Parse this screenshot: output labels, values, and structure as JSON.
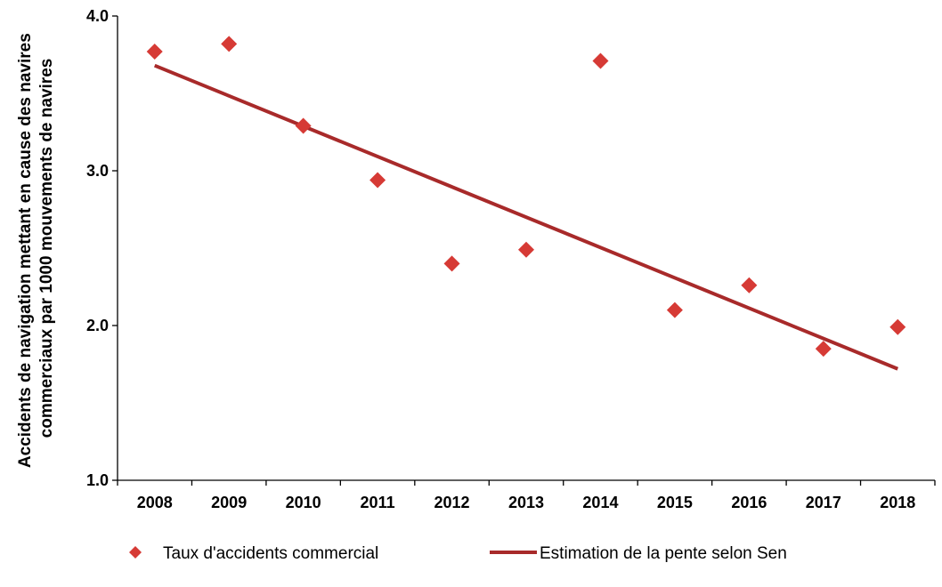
{
  "chart_data": {
    "type": "scatter",
    "title": "",
    "xlabel": "",
    "ylabel": "Accidents de navigation mettant en cause des navires commerciaux par 1000 mouvements de navires",
    "ylabel_lines": [
      "Accidents de navigation mettant en cause des navires",
      "commerciaux par 1000 mouvements de navires"
    ],
    "ylim": [
      1.0,
      4.0
    ],
    "yticks": [
      "1.0",
      "2.0",
      "3.0",
      "4.0"
    ],
    "ytick_values": [
      1.0,
      2.0,
      3.0,
      4.0
    ],
    "categories": [
      "2008",
      "2009",
      "2010",
      "2011",
      "2012",
      "2013",
      "2014",
      "2015",
      "2016",
      "2017",
      "2018"
    ],
    "grid": false,
    "legend_position": "bottom",
    "series": [
      {
        "name": "Taux d'accidents commercial",
        "kind": "scatter",
        "marker": "diamond",
        "color": "#d63a35",
        "values": [
          3.77,
          3.82,
          3.29,
          2.94,
          2.4,
          2.49,
          3.71,
          2.1,
          2.26,
          1.85,
          1.99
        ]
      },
      {
        "name": "Estimation de la pente selon Sen",
        "kind": "line",
        "color": "#a82a2a",
        "start": {
          "x": "2008",
          "y": 3.68
        },
        "end": {
          "x": "2018",
          "y": 1.72
        }
      }
    ]
  }
}
